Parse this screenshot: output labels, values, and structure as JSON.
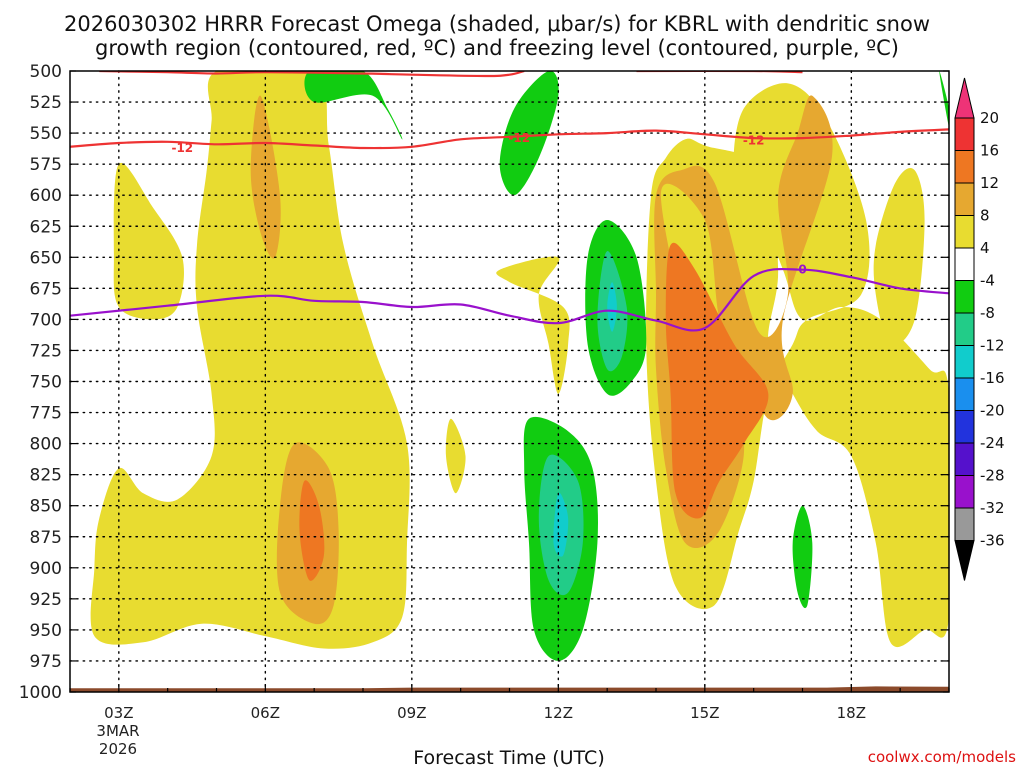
{
  "chart_data": {
    "type": "heatmap",
    "title_line1": "2026030302 HRRR Forecast Omega (shaded, μbar/s) for KBRL with dendritic snow",
    "title_line2": "growth region (contoured, red, ºC) and freezing level (contoured, purple, ºC)",
    "xlabel": "Forecast Time (UTC)",
    "date_label": [
      "3MAR",
      "2026"
    ],
    "credit": "coolwx.com/models",
    "x_range_hours": [
      2.0,
      20.0
    ],
    "y_axis": {
      "unit": "hPa",
      "range": [
        500,
        1000
      ],
      "ticks": [
        500,
        525,
        550,
        575,
        600,
        625,
        650,
        675,
        700,
        725,
        750,
        775,
        800,
        825,
        850,
        875,
        900,
        925,
        950,
        975,
        1000
      ],
      "tick_labels": [
        "500",
        "525",
        "550",
        "575",
        "600",
        "625",
        "650",
        "675",
        "700",
        "725",
        "750",
        "775",
        "800",
        "825",
        "850",
        "875",
        "900",
        "925",
        "950",
        "975",
        "1000"
      ]
    },
    "x_axis": {
      "ticks": [
        3,
        6,
        9,
        12,
        15,
        18
      ],
      "tick_labels": [
        "03Z",
        "06Z",
        "09Z",
        "12Z",
        "15Z",
        "18Z"
      ]
    },
    "colorbar": {
      "labels": [
        "20",
        "16",
        "12",
        "8",
        "4",
        "-4",
        "-8",
        "-12",
        "-16",
        "-20",
        "-24",
        "-28",
        "-32",
        "-36"
      ],
      "colors": [
        "#ee3377",
        "#ee3333",
        "#ee7722",
        "#e6a830",
        "#e8dc30",
        "#ffffff",
        "#11cc11",
        "#22cc88",
        "#11cccc",
        "#1a8fee",
        "#2233dd",
        "#5511cc",
        "#9911cc",
        "#999999",
        "#000000"
      ]
    },
    "colors": {
      "omega_4_8": "#e8dc30",
      "omega_8_12": "#e6a830",
      "omega_12_16": "#ee7722",
      "omega_neg4_8": "#11cc11",
      "omega_neg8_12": "#22cc88",
      "omega_neg12_16": "#11cccc",
      "dgz_line": "#ee3333",
      "freezing_line": "#9911cc",
      "ground": "#8b4a2b"
    },
    "dgz_contour": {
      "label": "-12",
      "points": [
        [
          2.0,
          561
        ],
        [
          3.0,
          558
        ],
        [
          4.0,
          557
        ],
        [
          5.0,
          559
        ],
        [
          6.0,
          558
        ],
        [
          7.0,
          560
        ],
        [
          8.0,
          562
        ],
        [
          9.0,
          561
        ],
        [
          10.0,
          555
        ],
        [
          11.0,
          553
        ],
        [
          12.0,
          551
        ],
        [
          13.0,
          550
        ],
        [
          14.0,
          548
        ],
        [
          15.0,
          551
        ],
        [
          16.0,
          554
        ],
        [
          17.0,
          554
        ],
        [
          18.0,
          552
        ],
        [
          19.0,
          549
        ],
        [
          20.0,
          547
        ]
      ],
      "label_positions": [
        [
          4.3,
          562
        ],
        [
          11.2,
          554
        ],
        [
          16.0,
          556
        ]
      ]
    },
    "dgz_top_fragments": [
      [
        [
          2.6,
          500
        ],
        [
          4.0,
          501
        ],
        [
          5.0,
          502
        ],
        [
          6.0,
          501
        ],
        [
          8.0,
          502
        ],
        [
          9.0,
          503
        ],
        [
          10.5,
          504
        ],
        [
          11.0,
          503
        ],
        [
          11.3,
          500
        ]
      ],
      [
        [
          13.6,
          500
        ],
        [
          16.0,
          500
        ],
        [
          17.0,
          501
        ]
      ]
    ],
    "freezing_contour": {
      "label": "0",
      "points": [
        [
          2.0,
          697
        ],
        [
          4.0,
          689
        ],
        [
          6.0,
          681
        ],
        [
          7.0,
          685
        ],
        [
          8.0,
          686
        ],
        [
          9.0,
          690
        ],
        [
          10.0,
          688
        ],
        [
          11.0,
          697
        ],
        [
          12.0,
          703
        ],
        [
          13.0,
          693
        ],
        [
          14.0,
          701
        ],
        [
          15.0,
          707
        ],
        [
          16.0,
          665
        ],
        [
          17.0,
          660
        ],
        [
          18.0,
          666
        ],
        [
          19.0,
          675
        ],
        [
          20.0,
          679
        ]
      ],
      "label_positions": [
        [
          17.0,
          660
        ]
      ]
    },
    "omega_regions": [
      {
        "level": "4 to 8",
        "kind": "positive",
        "points": [
          [
            5.0,
            500
          ],
          [
            7.0,
            500
          ],
          [
            7.3,
            560
          ],
          [
            7.6,
            640
          ],
          [
            8.2,
            720
          ],
          [
            8.9,
            800
          ],
          [
            8.9,
            880
          ],
          [
            8.8,
            940
          ],
          [
            8.2,
            960
          ],
          [
            7.2,
            965
          ],
          [
            6.0,
            955
          ],
          [
            4.7,
            945
          ],
          [
            3.5,
            960
          ],
          [
            2.5,
            955
          ],
          [
            2.5,
            900
          ],
          [
            2.6,
            860
          ],
          [
            3.0,
            820
          ],
          [
            3.5,
            840
          ],
          [
            4.2,
            845
          ],
          [
            4.9,
            810
          ],
          [
            4.9,
            760
          ],
          [
            4.6,
            690
          ],
          [
            4.6,
            640
          ],
          [
            4.8,
            580
          ],
          [
            4.9,
            540
          ]
        ]
      },
      {
        "level": "4 to 8",
        "kind": "positive",
        "points": [
          [
            3.0,
            575
          ],
          [
            3.7,
            610
          ],
          [
            4.3,
            650
          ],
          [
            4.2,
            690
          ],
          [
            3.7,
            700
          ],
          [
            3.0,
            690
          ],
          [
            2.9,
            650
          ]
        ]
      },
      {
        "level": "4 to 8",
        "kind": "positive",
        "points": [
          [
            9.8,
            780
          ],
          [
            10.1,
            810
          ],
          [
            9.9,
            840
          ],
          [
            9.7,
            810
          ]
        ]
      },
      {
        "level": "4 to 8",
        "kind": "positive",
        "points": [
          [
            12.0,
            650
          ],
          [
            11.6,
            680
          ],
          [
            11.8,
            720
          ],
          [
            12.0,
            760
          ],
          [
            12.2,
            720
          ],
          [
            12.1,
            690
          ],
          [
            11.0,
            670
          ],
          [
            10.8,
            660
          ]
        ]
      },
      {
        "level": "4 to 8",
        "kind": "positive",
        "points": [
          [
            15.0,
            560
          ],
          [
            16.2,
            580
          ],
          [
            16.5,
            660
          ],
          [
            16.3,
            720
          ],
          [
            16.8,
            760
          ],
          [
            17.3,
            790
          ],
          [
            18.0,
            810
          ],
          [
            18.5,
            880
          ],
          [
            18.8,
            960
          ],
          [
            19.5,
            950
          ],
          [
            20.0,
            940
          ],
          [
            20.0,
            760
          ],
          [
            19.6,
            740
          ],
          [
            18.6,
            700
          ],
          [
            17.8,
            690
          ],
          [
            17.0,
            700
          ],
          [
            16.6,
            660
          ],
          [
            16.0,
            600
          ],
          [
            15.6,
            580
          ],
          [
            15.8,
            530
          ],
          [
            16.7,
            510
          ],
          [
            17.5,
            540
          ],
          [
            18.3,
            620
          ],
          [
            18.2,
            680
          ],
          [
            17.1,
            700
          ],
          [
            16.8,
            720
          ],
          [
            16.3,
            760
          ],
          [
            16.0,
            830
          ],
          [
            15.7,
            870
          ],
          [
            15.2,
            930
          ],
          [
            14.4,
            915
          ],
          [
            14.0,
            830
          ],
          [
            13.8,
            720
          ],
          [
            13.9,
            600
          ],
          [
            14.2,
            570
          ],
          [
            14.6,
            555
          ]
        ]
      },
      {
        "level": "4 to 8",
        "kind": "positive",
        "points": [
          [
            18.9,
            590
          ],
          [
            19.3,
            580
          ],
          [
            19.5,
            620
          ],
          [
            19.3,
            700
          ],
          [
            18.8,
            720
          ],
          [
            18.5,
            680
          ],
          [
            18.5,
            640
          ]
        ]
      },
      {
        "level": "8 to 12",
        "kind": "positive",
        "points": [
          [
            5.9,
            520
          ],
          [
            6.3,
            600
          ],
          [
            6.2,
            650
          ],
          [
            5.9,
            630
          ],
          [
            5.7,
            580
          ]
        ]
      },
      {
        "level": "8 to 12",
        "kind": "positive",
        "points": [
          [
            6.6,
            800
          ],
          [
            7.3,
            820
          ],
          [
            7.5,
            870
          ],
          [
            7.4,
            930
          ],
          [
            7.0,
            945
          ],
          [
            6.3,
            920
          ],
          [
            6.3,
            850
          ]
        ]
      },
      {
        "level": "8 to 12",
        "kind": "positive",
        "points": [
          [
            14.1,
            600
          ],
          [
            15.0,
            620
          ],
          [
            15.3,
            700
          ],
          [
            15.7,
            730
          ],
          [
            16.3,
            780
          ],
          [
            16.8,
            760
          ],
          [
            16.6,
            700
          ],
          [
            17.6,
            570
          ],
          [
            17.2,
            520
          ],
          [
            16.9,
            550
          ],
          [
            16.5,
            600
          ],
          [
            16.7,
            680
          ],
          [
            16.1,
            710
          ],
          [
            15.2,
            590
          ],
          [
            14.5,
            580
          ],
          [
            14.0,
            600
          ],
          [
            14.0,
            680
          ],
          [
            14.0,
            740
          ],
          [
            14.2,
            820
          ],
          [
            14.6,
            880
          ],
          [
            15.3,
            870
          ],
          [
            15.8,
            800
          ],
          [
            15.0,
            760
          ]
        ]
      },
      {
        "level": "12 to 16",
        "kind": "positive",
        "points": [
          [
            6.8,
            830
          ],
          [
            7.1,
            850
          ],
          [
            7.2,
            890
          ],
          [
            6.9,
            910
          ],
          [
            6.7,
            870
          ]
        ]
      },
      {
        "level": "12 to 16",
        "kind": "positive",
        "points": [
          [
            14.3,
            640
          ],
          [
            14.8,
            660
          ],
          [
            15.6,
            720
          ],
          [
            16.3,
            760
          ],
          [
            15.8,
            800
          ],
          [
            15.3,
            830
          ],
          [
            14.9,
            860
          ],
          [
            14.4,
            840
          ],
          [
            14.3,
            760
          ],
          [
            14.2,
            700
          ]
        ]
      },
      {
        "level": "-4 to -8",
        "kind": "negative",
        "points": [
          [
            6.9,
            500
          ],
          [
            8.0,
            500
          ],
          [
            8.5,
            530
          ],
          [
            8.8,
            555
          ],
          [
            8.2,
            520
          ],
          [
            7.0,
            525
          ]
        ]
      },
      {
        "level": "-4 to -8",
        "kind": "negative",
        "points": [
          [
            11.8,
            500
          ],
          [
            11.1,
            530
          ],
          [
            10.8,
            575
          ],
          [
            11.1,
            600
          ],
          [
            11.6,
            570
          ],
          [
            12.0,
            520
          ]
        ]
      },
      {
        "level": "-4 to -8",
        "kind": "negative",
        "points": [
          [
            19.8,
            500
          ],
          [
            20.0,
            530
          ],
          [
            20.0,
            545
          ]
        ]
      },
      {
        "level": "-4 to -8",
        "kind": "negative",
        "points": [
          [
            13.0,
            620
          ],
          [
            13.6,
            650
          ],
          [
            13.8,
            720
          ],
          [
            13.5,
            750
          ],
          [
            13.0,
            760
          ],
          [
            12.6,
            720
          ],
          [
            12.6,
            650
          ]
        ]
      },
      {
        "level": "-4 to -8",
        "kind": "negative",
        "points": [
          [
            11.4,
            780
          ],
          [
            12.2,
            790
          ],
          [
            12.7,
            820
          ],
          [
            12.8,
            880
          ],
          [
            12.5,
            950
          ],
          [
            12.0,
            975
          ],
          [
            11.5,
            950
          ],
          [
            11.4,
            880
          ],
          [
            11.3,
            820
          ]
        ]
      },
      {
        "level": "-4 to -8",
        "kind": "negative",
        "points": [
          [
            17.0,
            850
          ],
          [
            17.2,
            880
          ],
          [
            17.1,
            930
          ],
          [
            16.9,
            920
          ],
          [
            16.8,
            880
          ]
        ]
      },
      {
        "level": "-8 to -12",
        "kind": "negative",
        "points": [
          [
            13.0,
            645
          ],
          [
            13.4,
            690
          ],
          [
            13.3,
            730
          ],
          [
            13.0,
            740
          ],
          [
            12.8,
            700
          ]
        ]
      },
      {
        "level": "-8 to -12",
        "kind": "negative",
        "points": [
          [
            11.8,
            810
          ],
          [
            12.4,
            830
          ],
          [
            12.5,
            880
          ],
          [
            12.2,
            920
          ],
          [
            11.8,
            910
          ],
          [
            11.6,
            860
          ]
        ]
      },
      {
        "level": "-12 to -16",
        "kind": "negative",
        "points": [
          [
            13.1,
            670
          ],
          [
            13.2,
            690
          ],
          [
            13.1,
            710
          ],
          [
            13.0,
            690
          ]
        ]
      },
      {
        "level": "-12 to -16",
        "kind": "negative",
        "points": [
          [
            12.0,
            840
          ],
          [
            12.2,
            860
          ],
          [
            12.1,
            890
          ],
          [
            11.9,
            880
          ]
        ]
      }
    ]
  }
}
